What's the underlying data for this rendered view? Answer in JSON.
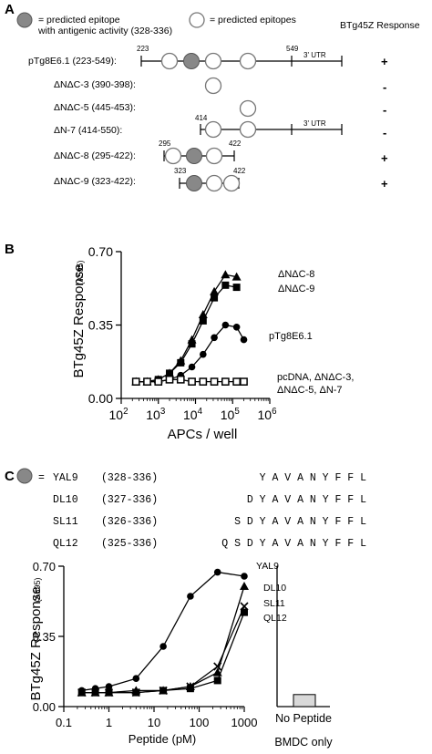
{
  "panel_a": {
    "panel_label": "A",
    "legend_filled": "= predicted epitope",
    "legend_filled_line2": "with antigenic activity (328-336)",
    "legend_open": "= predicted epitopes",
    "response_header": "BTg45Z Response",
    "utr_label": "3' UTR",
    "constructs": [
      {
        "label": "pTg8E6.1 (223-549):",
        "response": "+",
        "start_label": "223",
        "end_label": "549"
      },
      {
        "label": "ΔNΔC-3 (390-398):",
        "response": "-"
      },
      {
        "label": "ΔNΔC-5 (445-453):",
        "response": "-"
      },
      {
        "label": "ΔN-7 (414-550):",
        "response": "-",
        "start_label": "414"
      },
      {
        "label": "ΔNΔC-8 (295-422):",
        "response": "+",
        "start_label": "295",
        "end_label": "422"
      },
      {
        "label": "ΔNΔC-9 (323-422):",
        "response": "+",
        "start_label": "323",
        "end_label": "422"
      }
    ]
  },
  "panel_c": {
    "panel_label": "C",
    "peptide_prefix": "=",
    "peptides": [
      {
        "name": "YAL9",
        "range": "(328-336)",
        "sequence": "Y A V A N Y F F L"
      },
      {
        "name": "DL10",
        "range": "(327-336)",
        "sequence": "D Y A V A N Y F F L"
      },
      {
        "name": "SL11",
        "range": "(326-336)",
        "sequence": "S D Y A V A N Y F F L"
      },
      {
        "name": "QL12",
        "range": "(325-336)",
        "sequence": "Q S D Y A V A N Y F F L"
      }
    ],
    "no_peptide_label": "No Peptide",
    "bmdc_label": "BMDC only"
  },
  "chart_data": [
    {
      "panel": "B",
      "type": "line",
      "xlabel": "APCs / well",
      "ylabel": "BTg45Z Response",
      "ylabel_sub": "(A595)",
      "x_scale": "log",
      "xlim": [
        100,
        1000000
      ],
      "ylim": [
        0,
        0.7
      ],
      "x_ticks": [
        {
          "v": 100,
          "b": "10",
          "e": "2"
        },
        {
          "v": 1000,
          "b": "10",
          "e": "3"
        },
        {
          "v": 10000,
          "b": "10",
          "e": "4"
        },
        {
          "v": 100000,
          "b": "10",
          "e": "5"
        },
        {
          "v": 1000000,
          "b": "10",
          "e": "6"
        }
      ],
      "y_ticks": [
        "0.00",
        "0.35",
        "0.70"
      ],
      "series": [
        {
          "name": "ΔNΔC-8",
          "marker": "triangle",
          "x": [
            250,
            500,
            1000,
            2000,
            4000,
            8000,
            16000,
            32000,
            64000,
            128000
          ],
          "y": [
            0.08,
            0.08,
            0.09,
            0.12,
            0.18,
            0.28,
            0.4,
            0.51,
            0.59,
            0.58
          ]
        },
        {
          "name": "ΔNΔC-9",
          "marker": "square",
          "x": [
            250,
            500,
            1000,
            2000,
            4000,
            8000,
            16000,
            32000,
            64000,
            128000
          ],
          "y": [
            0.08,
            0.08,
            0.09,
            0.12,
            0.17,
            0.26,
            0.37,
            0.48,
            0.54,
            0.53
          ]
        },
        {
          "name": "pTg8E6.1",
          "marker": "circle",
          "x": [
            250,
            500,
            1000,
            2000,
            4000,
            8000,
            16000,
            32000,
            64000,
            128000,
            200000
          ],
          "y": [
            0.08,
            0.08,
            0.08,
            0.09,
            0.11,
            0.15,
            0.21,
            0.29,
            0.35,
            0.34,
            0.28
          ]
        },
        {
          "name": "pcDNA, ΔNΔC-3, ΔNΔC-5, ΔN-7",
          "marker": "open-square",
          "x": [
            250,
            500,
            1000,
            2000,
            4000,
            8000,
            16000,
            32000,
            64000,
            128000,
            200000
          ],
          "y": [
            0.08,
            0.08,
            0.08,
            0.09,
            0.09,
            0.08,
            0.08,
            0.08,
            0.08,
            0.08,
            0.08
          ]
        }
      ],
      "series_labels": [
        {
          "text": "ΔNΔC-8",
          "lines": [
            "ΔNΔC-8"
          ]
        },
        {
          "text": "ΔNΔC-9",
          "lines": [
            "ΔNΔC-9"
          ]
        },
        {
          "text": "pTg8E6.1",
          "lines": [
            "pTg8E6.1"
          ]
        },
        {
          "text": "pcDNA, ΔNΔC-3, ΔNΔC-5, ΔN-7",
          "lines": [
            "pcDNA, ΔNΔC-3,",
            "ΔNΔC-5, ΔN-7"
          ]
        }
      ]
    },
    {
      "panel": "C",
      "type": "line",
      "xlabel": "Peptide (pM)",
      "ylabel": "BTg45Z Response",
      "ylabel_sub": "(A595)",
      "x_scale": "log",
      "xlim": [
        0.1,
        1000
      ],
      "ylim": [
        0,
        0.7
      ],
      "x_ticks": [
        "0.1",
        "1",
        "10",
        "100",
        "1000"
      ],
      "y_ticks": [
        "0.00",
        "0.35",
        "0.70"
      ],
      "series": [
        {
          "name": "YAL9",
          "marker": "circle",
          "x": [
            0.25,
            0.5,
            1,
            4,
            16,
            64,
            256,
            1000
          ],
          "y": [
            0.08,
            0.09,
            0.1,
            0.14,
            0.3,
            0.55,
            0.67,
            0.65
          ]
        },
        {
          "name": "DL10",
          "marker": "triangle",
          "x": [
            0.25,
            0.5,
            1,
            4,
            16,
            64,
            256,
            1000
          ],
          "y": [
            0.07,
            0.07,
            0.07,
            0.08,
            0.08,
            0.1,
            0.17,
            0.6
          ]
        },
        {
          "name": "SL11",
          "marker": "x",
          "x": [
            0.25,
            0.5,
            1,
            4,
            16,
            64,
            256,
            1000
          ],
          "y": [
            0.07,
            0.07,
            0.07,
            0.07,
            0.08,
            0.1,
            0.2,
            0.5
          ]
        },
        {
          "name": "QL12",
          "marker": "square",
          "x": [
            0.25,
            0.5,
            1,
            4,
            16,
            64,
            256,
            1000
          ],
          "y": [
            0.07,
            0.07,
            0.07,
            0.07,
            0.08,
            0.09,
            0.13,
            0.47
          ]
        }
      ],
      "bar": {
        "category": "No Peptide",
        "group": "BMDC only",
        "value": 0.06,
        "color": "#d9d9d9"
      }
    }
  ]
}
